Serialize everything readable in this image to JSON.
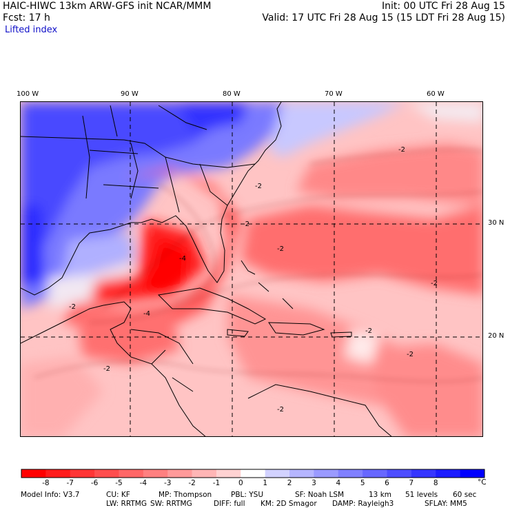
{
  "header": {
    "left_line1": "HAIC-HIWC 13km ARW-GFS init   NCAR/MMM",
    "left_line2": "Fcst:   17 h",
    "field_name": "Lifted index",
    "right_line1": "Init: 00 UTC Fri 28 Aug 15",
    "right_line2": "Valid: 17 UTC Fri 28 Aug 15 (15 LDT Fri 28 Aug 15)"
  },
  "map": {
    "lon_labels": [
      "100 W",
      "90 W",
      "80 W",
      "70 W",
      "60 W"
    ],
    "lat_labels": [
      "30 N",
      "20 N"
    ],
    "contour_labels": [
      "-2",
      "-2",
      "-2",
      "-2",
      "-2",
      "-2",
      "-2",
      "-2",
      "-2",
      "-4",
      "-4",
      "-2"
    ]
  },
  "colorbar": {
    "labels": [
      "-8",
      "-7",
      "-6",
      "-5",
      "-4",
      "-3",
      "-2",
      "-1",
      "0",
      "1",
      "2",
      "3",
      "4",
      "5",
      "6",
      "7",
      "8"
    ],
    "unit": "°C",
    "colors": [
      "#ff0000",
      "#ff1c1c",
      "#ff3535",
      "#ff4e4e",
      "#ff6767",
      "#ff8080",
      "#ff9a9a",
      "#ffb5b5",
      "#ffd2d2",
      "#ffffff",
      "#d2d2ff",
      "#b5b5ff",
      "#9a9aff",
      "#8080ff",
      "#6767ff",
      "#4e4eff",
      "#3535ff",
      "#1c1cff",
      "#0000ff"
    ]
  },
  "footer": {
    "model_info": "Model Info: V3.7",
    "cu": "CU: KF",
    "mp": "MP: Thompson",
    "pbl": "PBL: YSU",
    "sf": "SF: Noah LSM",
    "res": "13 km",
    "levels": "51 levels",
    "dt": "60 sec",
    "lw": "LW: RRTMG",
    "sw": "SW: RRTMG",
    "diff": "DIFF: full",
    "km": "KM: 2D Smagor",
    "damp": "DAMP: Rayleigh3",
    "sflay": "SFLAY: MM5"
  }
}
